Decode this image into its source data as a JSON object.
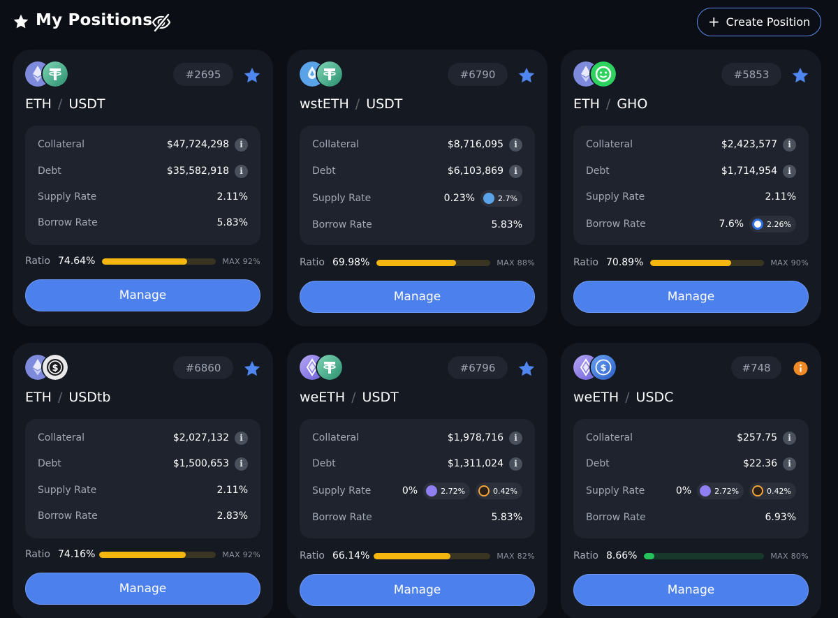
{
  "header": {
    "title": "My Positions",
    "star_icon": "star-icon",
    "visibility_icon": "eye-off-icon",
    "create_label": "Create Position"
  },
  "colors": {
    "background": "#0b0e14",
    "card": "#151922",
    "accent": "#4c80ec",
    "ratio_yellow": "#f5b70f",
    "ratio_green": "#27c15b",
    "warning": "#f08a24"
  },
  "cards": [
    {
      "id": "#2695",
      "collateral_asset": "ETH",
      "debt_asset": "USDT",
      "separator": "/",
      "status_icon": "favorite-star-icon",
      "collateral_label": "Collateral",
      "collateral": "$47,724,298",
      "debt_label": "Debt",
      "debt": "$35,582,918",
      "supply_label": "Supply Rate",
      "supply_rate": "2.11%",
      "borrow_label": "Borrow Rate",
      "borrow_rate": "5.83%",
      "ratio_label": "Ratio",
      "ratio": "74.64%",
      "ratio_fraction": 0.7464,
      "max": "MAX 92%",
      "manage_label": "Manage"
    },
    {
      "id": "#6790",
      "collateral_asset": "wstETH",
      "debt_asset": "USDT",
      "separator": "/",
      "status_icon": "favorite-star-icon",
      "collateral_label": "Collateral",
      "collateral": "$8,716,095",
      "debt_label": "Debt",
      "debt": "$6,103,869",
      "supply_label": "Supply Rate",
      "supply_rate": "0.23%",
      "supply_extra_1": "2.7%",
      "borrow_label": "Borrow Rate",
      "borrow_rate": "5.83%",
      "ratio_label": "Ratio",
      "ratio": "69.98%",
      "ratio_fraction": 0.6998,
      "max": "MAX 88%",
      "manage_label": "Manage"
    },
    {
      "id": "#5853",
      "collateral_asset": "ETH",
      "debt_asset": "GHO",
      "separator": "/",
      "status_icon": "favorite-star-icon",
      "collateral_label": "Collateral",
      "collateral": "$2,423,577",
      "debt_label": "Debt",
      "debt": "$1,714,954",
      "supply_label": "Supply Rate",
      "supply_rate": "2.11%",
      "borrow_label": "Borrow Rate",
      "borrow_rate": "7.6%",
      "borrow_extra_1": "2.26%",
      "ratio_label": "Ratio",
      "ratio": "70.89%",
      "ratio_fraction": 0.7089,
      "max": "MAX 90%",
      "manage_label": "Manage"
    },
    {
      "id": "#6860",
      "collateral_asset": "ETH",
      "debt_asset": "USDtb",
      "separator": "/",
      "status_icon": "favorite-star-icon",
      "collateral_label": "Collateral",
      "collateral": "$2,027,132",
      "debt_label": "Debt",
      "debt": "$1,500,653",
      "supply_label": "Supply Rate",
      "supply_rate": "2.11%",
      "borrow_label": "Borrow Rate",
      "borrow_rate": "2.83%",
      "ratio_label": "Ratio",
      "ratio": "74.16%",
      "ratio_fraction": 0.7416,
      "max": "MAX 92%",
      "manage_label": "Manage"
    },
    {
      "id": "#6796",
      "collateral_asset": "weETH",
      "debt_asset": "USDT",
      "separator": "/",
      "status_icon": "favorite-star-icon",
      "collateral_label": "Collateral",
      "collateral": "$1,978,716",
      "debt_label": "Debt",
      "debt": "$1,311,024",
      "supply_label": "Supply Rate",
      "supply_rate": "0%",
      "supply_extra_1": "2.72%",
      "supply_extra_2": "0.42%",
      "borrow_label": "Borrow Rate",
      "borrow_rate": "5.83%",
      "ratio_label": "Ratio",
      "ratio": "66.14%",
      "ratio_fraction": 0.6614,
      "max": "MAX 82%",
      "manage_label": "Manage"
    },
    {
      "id": "#748",
      "collateral_asset": "weETH",
      "debt_asset": "USDC",
      "separator": "/",
      "status_icon": "warning-info-icon",
      "collateral_label": "Collateral",
      "collateral": "$257.75",
      "debt_label": "Debt",
      "debt": "$22.36",
      "supply_label": "Supply Rate",
      "supply_rate": "0%",
      "supply_extra_1": "2.72%",
      "supply_extra_2": "0.42%",
      "borrow_label": "Borrow Rate",
      "borrow_rate": "6.93%",
      "ratio_label": "Ratio",
      "ratio": "8.66%",
      "ratio_fraction": 0.0866,
      "max": "MAX 80%",
      "manage_label": "Manage"
    }
  ]
}
